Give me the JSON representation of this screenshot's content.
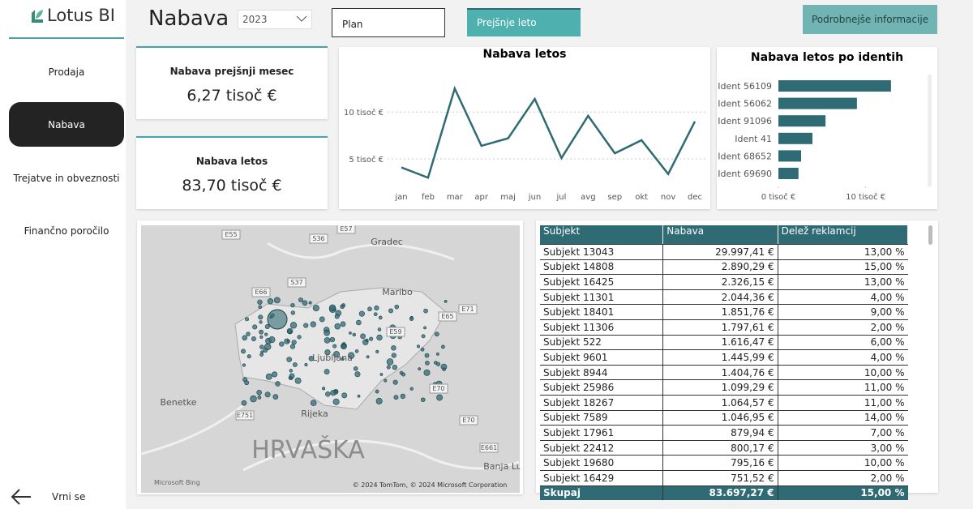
{
  "sidebar": {
    "logo": "Lotus BI",
    "nav": [
      "Prodaja",
      "Nabava",
      "Trejatve in obveznosti",
      "Finančno poročilo"
    ],
    "back": "Vrni se"
  },
  "header": {
    "title": "Nabava",
    "year": "2023",
    "plan": "Plan",
    "previous_year": "Prejšnje leto",
    "details": "Podrobnejše informacije"
  },
  "cards": [
    {
      "title": "Nabava prejšnji mesec",
      "value": "6,27 tisoč €"
    },
    {
      "title": "Nabava letos",
      "value": "83,70 tisoč €"
    }
  ],
  "chart_data": [
    {
      "type": "line",
      "title": "Nabava letos",
      "categories": [
        "jan",
        "feb",
        "mar",
        "apr",
        "maj",
        "jun",
        "jul",
        "avg",
        "sep",
        "okt",
        "nov",
        "dec"
      ],
      "values": [
        4.1,
        3.0,
        12.5,
        6.4,
        7.2,
        11.4,
        5.1,
        9.6,
        5.6,
        7.0,
        3.4,
        9.0
      ],
      "color": "#2e6b75",
      "ylim": [
        1.9,
        13.3
      ],
      "yticks": [
        {
          "value": 5,
          "label": "5 tisoč €"
        },
        {
          "value": 10,
          "label": "10 tisoč €"
        }
      ],
      "grid": true
    },
    {
      "type": "hbar",
      "title": "Nabava letos po identih",
      "categories": [
        "Ident 56109",
        "Ident 56062",
        "Ident 91096",
        "Ident 41",
        "Ident 68652",
        "Ident 69690"
      ],
      "values": [
        12.9,
        9.0,
        5.4,
        3.9,
        2.6,
        2.3
      ],
      "color": "#2e6b75",
      "xlim": [
        0,
        17
      ],
      "xticks": [
        {
          "value": 0,
          "label": "0 tisoč €"
        },
        {
          "value": 10,
          "label": "10 tisoč €"
        }
      ]
    }
  ],
  "map": {
    "labels": [
      "E55",
      "S36",
      "E57",
      "Gradec",
      "E66",
      "S37",
      "Maribo",
      "E71",
      "E65",
      "E59",
      "Ljubljana",
      "Benetke",
      "E751",
      "Rijeka",
      "E70",
      "E70",
      "HRVAŠKA",
      "E661",
      "Banja Lu"
    ],
    "logo": "Microsoft Bing",
    "attribution": "© 2024 TomTom, © 2024 Microsoft Corporation"
  },
  "table": {
    "columns": [
      "Subjekt",
      "Nabava",
      "Delež reklamcij"
    ],
    "rows": [
      [
        "Subjekt 13043",
        "29.997,41 €",
        "13,00 %"
      ],
      [
        "Subjekt 14808",
        "2.890,29 €",
        "15,00 %"
      ],
      [
        "Subjekt 16425",
        "2.326,15 €",
        "13,00 %"
      ],
      [
        "Subjekt 11301",
        "2.044,36 €",
        "4,00 %"
      ],
      [
        "Subjekt 18401",
        "1.851,76 €",
        "9,00 %"
      ],
      [
        "Subjekt 11306",
        "1.797,61 €",
        "2,00 %"
      ],
      [
        "Subjekt 522",
        "1.616,47 €",
        "6,00 %"
      ],
      [
        "Subjekt 9601",
        "1.445,99 €",
        "4,00 %"
      ],
      [
        "Subjekt 8944",
        "1.404,76 €",
        "10,00 %"
      ],
      [
        "Subjekt 25986",
        "1.099,29 €",
        "11,00 %"
      ],
      [
        "Subjekt 18267",
        "1.064,57 €",
        "11,00 %"
      ],
      [
        "Subjekt 7589",
        "1.046,95 €",
        "14,00 %"
      ],
      [
        "Subjekt 17961",
        "879,94 €",
        "7,00 %"
      ],
      [
        "Subjekt 22412",
        "800,17 €",
        "3,00 %"
      ],
      [
        "Subjekt 19680",
        "795,16 €",
        "10,00 %"
      ],
      [
        "Subjekt 16429",
        "751,52 €",
        "2,00 %"
      ]
    ],
    "total": [
      "Skupaj",
      "83.697,27 €",
      "15,00 %"
    ]
  }
}
